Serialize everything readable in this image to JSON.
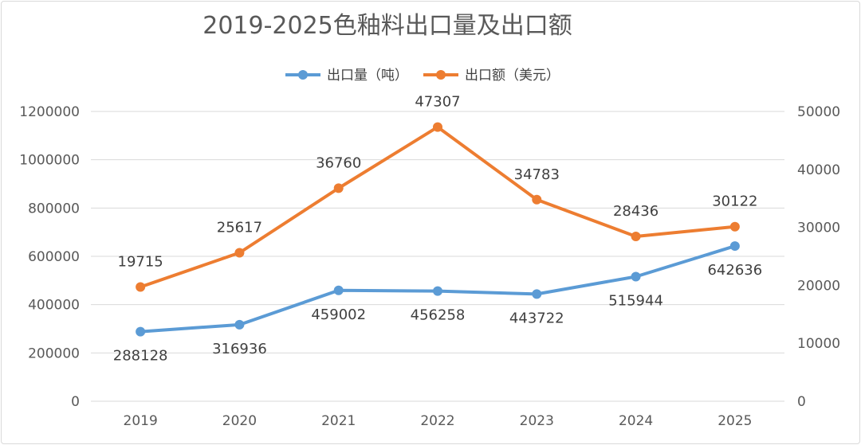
{
  "chart_data": {
    "type": "line",
    "title": "2019-2025色釉料出口量及出口额",
    "categories": [
      "2019",
      "2020",
      "2021",
      "2022",
      "2023",
      "2024",
      "2025"
    ],
    "series": [
      {
        "name": "出口量（吨）",
        "axis": "left",
        "color": "#5b9bd5",
        "values": [
          288128,
          316936,
          459002,
          456258,
          443722,
          515944,
          642636
        ],
        "labels": [
          "288128",
          "316936",
          "459002",
          "456258",
          "443722",
          "515944",
          "642636"
        ]
      },
      {
        "name": "出口额（美元）",
        "axis": "right",
        "color": "#ed7d31",
        "values": [
          19715,
          25617,
          36760,
          47307,
          34783,
          28436,
          30122
        ],
        "labels": [
          "19715",
          "25617",
          "36760",
          "47307",
          "34783",
          "28436",
          "30122"
        ]
      }
    ],
    "y_left": {
      "min": 0,
      "max": 1200000,
      "ticks": [
        "0",
        "200000",
        "400000",
        "600000",
        "800000",
        "1000000",
        "1200000"
      ]
    },
    "y_right": {
      "min": 0,
      "max": 50000,
      "ticks": [
        "0",
        "10000",
        "20000",
        "30000",
        "40000",
        "50000"
      ]
    },
    "grid": true,
    "legend_position": "top"
  }
}
